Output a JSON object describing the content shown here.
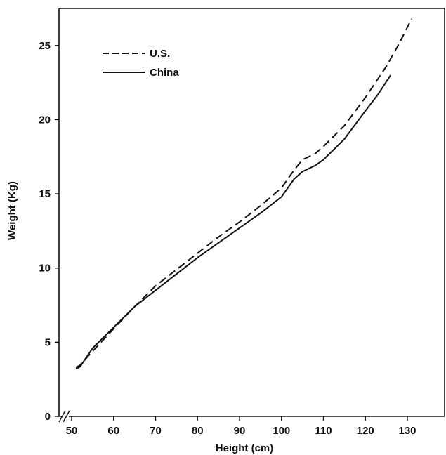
{
  "chart_data": {
    "type": "line",
    "title": "",
    "xlabel": "Height (cm)",
    "ylabel": "Weight (Kg)",
    "xlim": [
      50,
      135
    ],
    "ylim": [
      0,
      27.5
    ],
    "x_axis_break": true,
    "grid": false,
    "x_ticks": [
      "50",
      "60",
      "70",
      "80",
      "90",
      "100",
      "110",
      "120",
      "130"
    ],
    "y_ticks": [
      "0",
      "5",
      "10",
      "15",
      "20",
      "25"
    ],
    "legend_position": "top-left",
    "series": [
      {
        "name": "U.S.",
        "style": "dashed",
        "color": "#111111",
        "points": [
          [
            51,
            3.3
          ],
          [
            52,
            3.45
          ],
          [
            55,
            4.4
          ],
          [
            60,
            5.9
          ],
          [
            65,
            7.4
          ],
          [
            70,
            8.8
          ],
          [
            75,
            9.9
          ],
          [
            80,
            11.0
          ],
          [
            85,
            12.1
          ],
          [
            90,
            13.1
          ],
          [
            95,
            14.2
          ],
          [
            100,
            15.4
          ],
          [
            103,
            16.6
          ],
          [
            105,
            17.3
          ],
          [
            108,
            17.7
          ],
          [
            110,
            18.2
          ],
          [
            115,
            19.6
          ],
          [
            120,
            21.5
          ],
          [
            125,
            23.6
          ],
          [
            128,
            25.1
          ],
          [
            131,
            26.8
          ]
        ]
      },
      {
        "name": "China",
        "style": "solid",
        "color": "#111111",
        "points": [
          [
            51,
            3.2
          ],
          [
            52,
            3.35
          ],
          [
            55,
            4.6
          ],
          [
            60,
            6.0
          ],
          [
            65,
            7.4
          ],
          [
            70,
            8.5
          ],
          [
            75,
            9.6
          ],
          [
            80,
            10.7
          ],
          [
            85,
            11.7
          ],
          [
            90,
            12.7
          ],
          [
            95,
            13.7
          ],
          [
            100,
            14.8
          ],
          [
            103,
            16.0
          ],
          [
            105,
            16.5
          ],
          [
            108,
            16.9
          ],
          [
            110,
            17.3
          ],
          [
            115,
            18.7
          ],
          [
            120,
            20.6
          ],
          [
            123,
            21.7
          ],
          [
            126,
            23.0
          ]
        ]
      }
    ]
  }
}
